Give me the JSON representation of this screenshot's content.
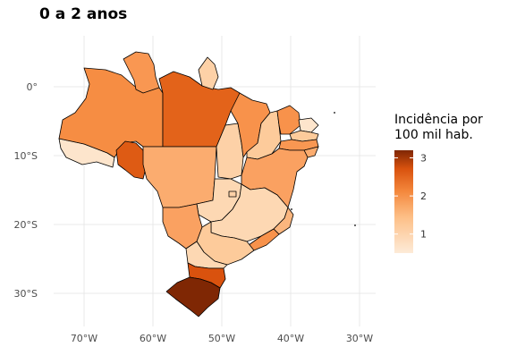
{
  "title": "0 a 2 anos",
  "chart_data": {
    "type": "choropleth",
    "title": "0 a 2 anos",
    "legend_title": [
      "Incidência por",
      "100 mil hab."
    ],
    "legend_ticks": [
      "1",
      "2",
      "3"
    ],
    "legend_range": [
      0.5,
      3.2
    ],
    "color_low": "#fdebd8",
    "color_high": "#7f2704",
    "x_ticks": [
      "70°W",
      "60°W",
      "50°W",
      "40°W",
      "30°W"
    ],
    "y_ticks": [
      "0°",
      "10°S",
      "20°S",
      "30°S"
    ],
    "grid": true,
    "legend_position": "right",
    "regions": [
      {
        "id": "AC",
        "value": 0.6
      },
      {
        "id": "AM",
        "value": 1.7
      },
      {
        "id": "RR",
        "value": 1.5
      },
      {
        "id": "PA",
        "value": 2.3
      },
      {
        "id": "AP",
        "value": 0.9
      },
      {
        "id": "RO",
        "value": 2.4
      },
      {
        "id": "MT",
        "value": 1.3
      },
      {
        "id": "TO",
        "value": 0.9
      },
      {
        "id": "MA",
        "value": 1.6
      },
      {
        "id": "PI",
        "value": 1.0
      },
      {
        "id": "CE",
        "value": 1.6
      },
      {
        "id": "RN",
        "value": 0.6
      },
      {
        "id": "PB",
        "value": 1.0
      },
      {
        "id": "PE",
        "value": 1.5
      },
      {
        "id": "AL",
        "value": 1.3
      },
      {
        "id": "SE",
        "value": 1.3
      },
      {
        "id": "BA",
        "value": 1.4
      },
      {
        "id": "GO",
        "value": 0.8
      },
      {
        "id": "DF",
        "value": 0.9
      },
      {
        "id": "MS",
        "value": 1.4
      },
      {
        "id": "MG",
        "value": 0.8
      },
      {
        "id": "ES",
        "value": 1.2
      },
      {
        "id": "RJ",
        "value": 1.6
      },
      {
        "id": "SP",
        "value": 1.0
      },
      {
        "id": "PR",
        "value": 0.8
      },
      {
        "id": "SC",
        "value": 2.5
      },
      {
        "id": "RS",
        "value": 3.2
      }
    ]
  }
}
